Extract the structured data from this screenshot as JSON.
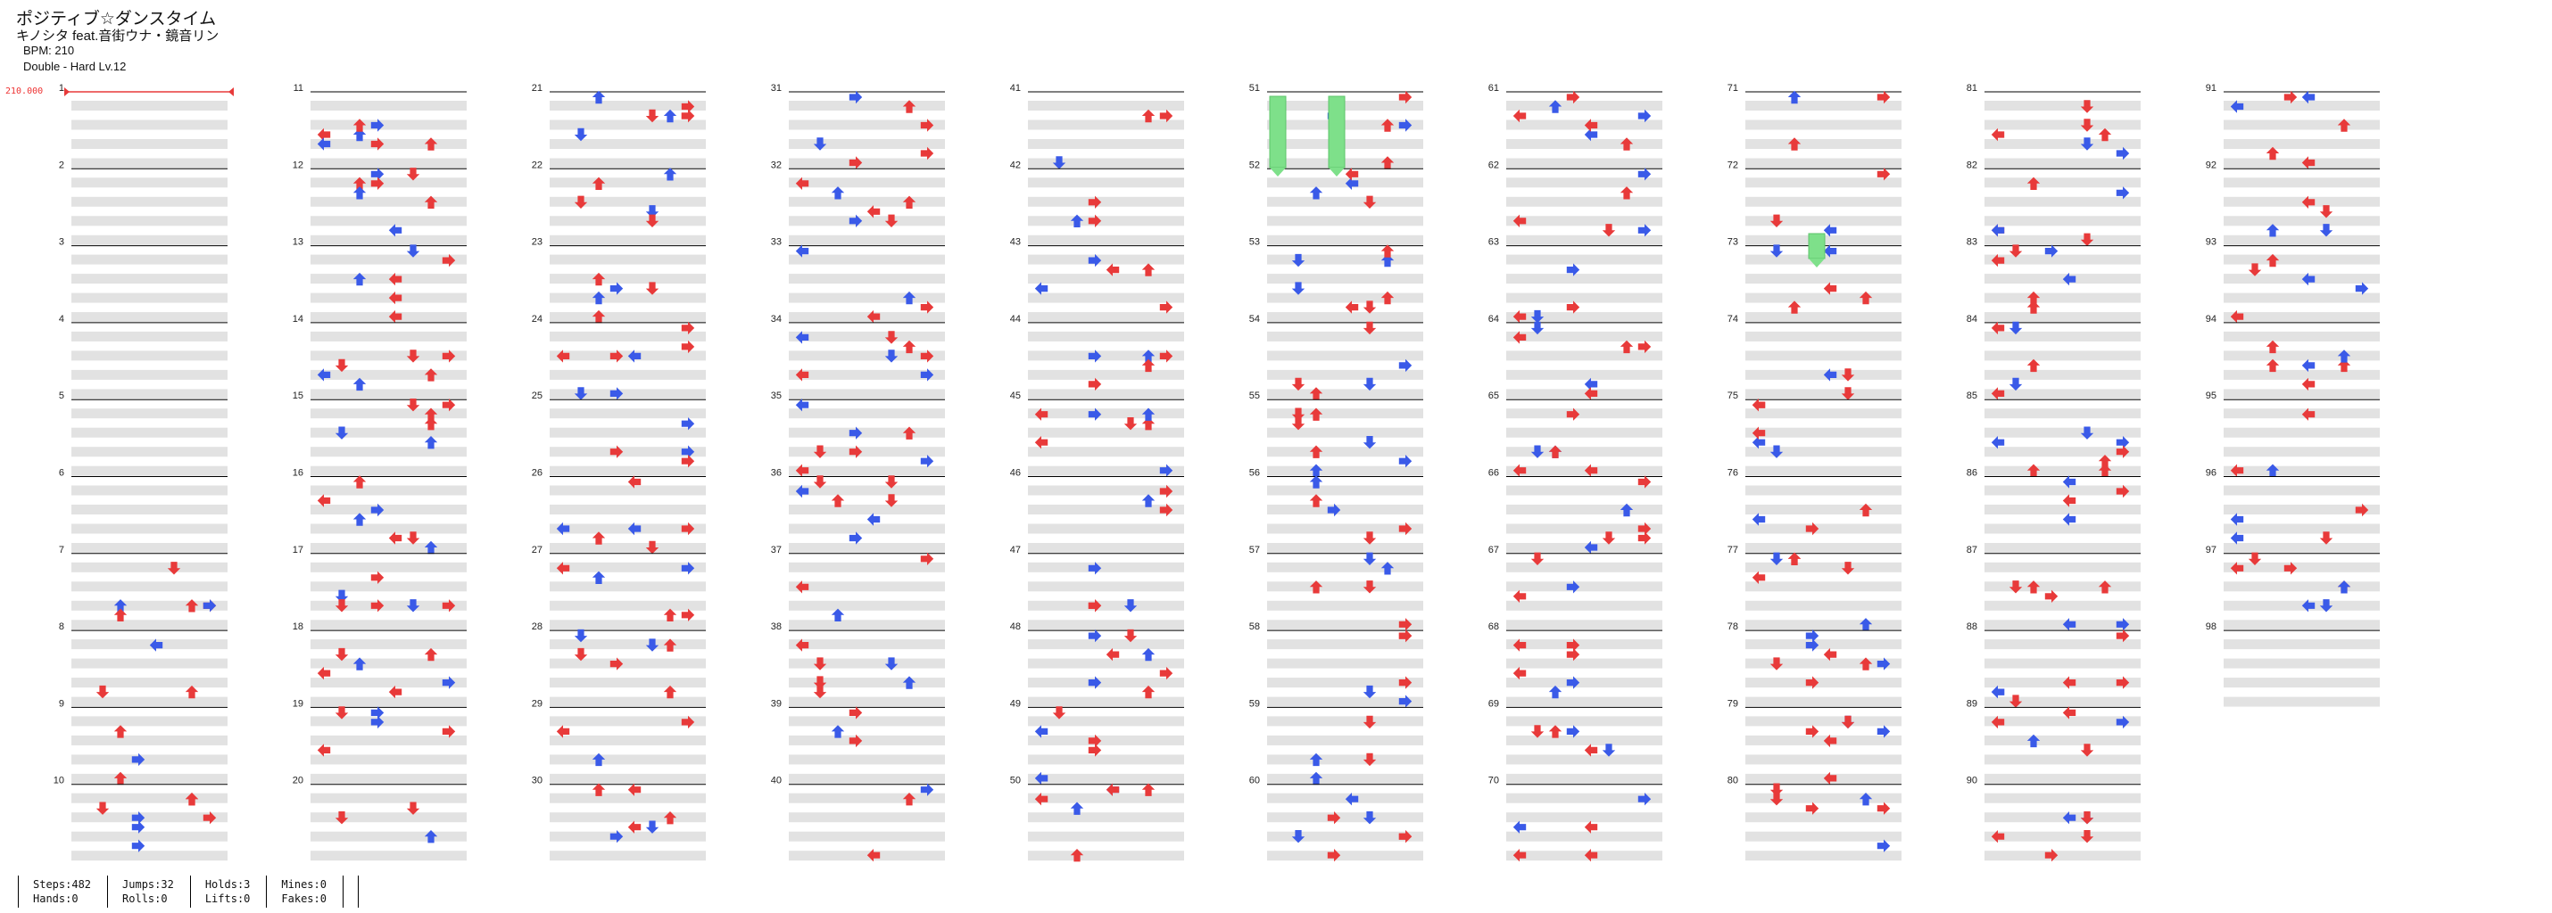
{
  "song": {
    "title": "ポジティブ☆ダンスタイム",
    "artist": "キノシタ feat.音街ウナ・鏡音リン",
    "bpm_label": "BPM: 210",
    "difficulty": "Double - Hard Lv.12",
    "bpm_marker": "210.000"
  },
  "colors": {
    "red_arrow": "#e83a3a",
    "blue_arrow": "#3a5ae8",
    "hold": "#7ee08a",
    "beat_band": "#e2e2e2",
    "measure_line": "#000000"
  },
  "measures": [
    "1",
    "2",
    "3",
    "4",
    "5",
    "6",
    "7",
    "8",
    "9",
    "10",
    "11",
    "12",
    "13",
    "14",
    "15",
    "16",
    "17",
    "18",
    "19",
    "20",
    "21",
    "22",
    "23",
    "24",
    "25",
    "26",
    "27",
    "28",
    "29",
    "30",
    "31",
    "32",
    "33",
    "34",
    "35",
    "36",
    "37",
    "38",
    "39",
    "40",
    "41",
    "42",
    "43",
    "44",
    "45",
    "46",
    "47",
    "48",
    "49",
    "50",
    "51",
    "52",
    "53",
    "54",
    "55",
    "56",
    "57",
    "58",
    "59",
    "60",
    "61",
    "62",
    "63",
    "64",
    "65",
    "66",
    "67",
    "68",
    "69",
    "70",
    "71",
    "72",
    "73",
    "74",
    "75",
    "76",
    "77",
    "78",
    "79",
    "80",
    "81",
    "82",
    "83",
    "84",
    "85",
    "86",
    "87",
    "88",
    "89",
    "90",
    "91",
    "92",
    "93",
    "94",
    "95",
    "96",
    "97",
    "98"
  ],
  "stats": [
    {
      "a": "Steps:482",
      "b": "Hands:0"
    },
    {
      "a": "Jumps:32",
      "b": "Rolls:0"
    },
    {
      "a": "Holds:3",
      "b": "Lifts:0"
    },
    {
      "a": "Mines:0",
      "b": "Fakes:0"
    }
  ]
}
